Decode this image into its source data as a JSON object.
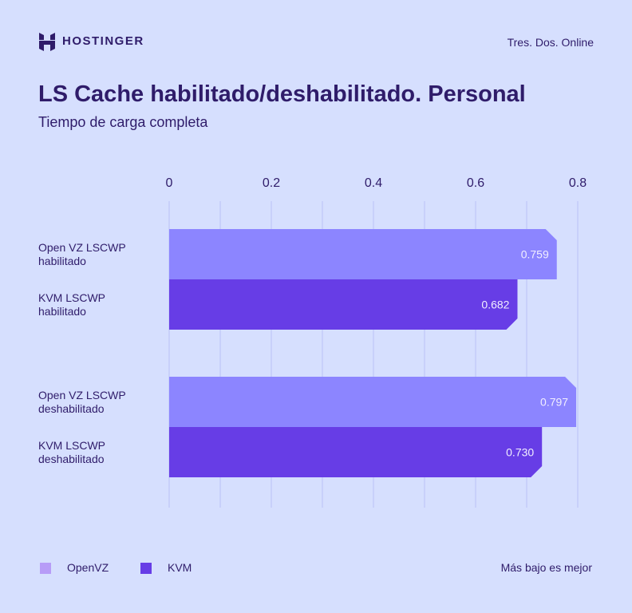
{
  "brand": {
    "name": "HOSTINGER",
    "site": "Tres. Dos. Online"
  },
  "colors": {
    "background": "#d6dffe",
    "text": "#2f1c6a",
    "openvz": "#8c85ff",
    "kvm": "#673de6",
    "grid": "#b9c1f5"
  },
  "chart_data": {
    "type": "bar",
    "orientation": "horizontal",
    "title": "LS Cache habilitado/deshabilitado. Personal",
    "subtitle": "Tiempo de carga completa",
    "categories": [
      "Open VZ LSCWP habilitado",
      "KVM LSCWP habilitado",
      "Open VZ LSCWP deshabilitado",
      "KVM LSCWP deshabilitado"
    ],
    "category_lines": [
      [
        "Open VZ LSCWP",
        "habilitado"
      ],
      [
        "KVM LSCWP",
        "habilitado"
      ],
      [
        "Open VZ LSCWP",
        "deshabilitado"
      ],
      [
        "KVM LSCWP",
        "deshabilitado"
      ]
    ],
    "series_of_category": [
      "OpenVZ",
      "KVM",
      "OpenVZ",
      "KVM"
    ],
    "values": [
      0.759,
      0.682,
      0.797,
      0.73
    ],
    "value_labels": [
      "0.759",
      "0.682",
      "0.797",
      "0.730"
    ],
    "xlim": [
      0,
      0.8
    ],
    "x_ticks": [
      "0",
      "0.2",
      "0.4",
      "0.6",
      "0.8"
    ],
    "grid": true,
    "legend": [
      {
        "name": "OpenVZ",
        "color": "#8c85ff"
      },
      {
        "name": "KVM",
        "color": "#673de6"
      }
    ],
    "legend_position": "bottom-left",
    "note": "Más bajo es mejor"
  }
}
